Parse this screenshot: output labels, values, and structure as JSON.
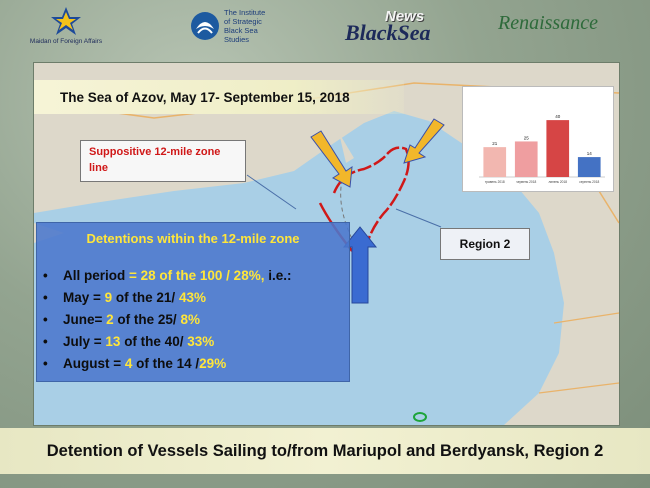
{
  "logos": {
    "mfa_label": "Maidan of Foreign Affairs",
    "iss_label_lines": [
      "The Institute",
      "of Strategic",
      "Black Sea",
      "Studies"
    ],
    "news_word": "News",
    "blacksea_word": "BlackSea",
    "renaissance_word": "Renaissance"
  },
  "slide_title": "The Sea of Azov, May 17- September 15, 2018",
  "zone_note": "Suppositive  12-mile zone line",
  "region_label": "Region 2",
  "detentions": {
    "title": "Detentions within the 12-mile zone",
    "items": [
      {
        "prefix": "All period ",
        "hl1": "= 28 of the 100 / 28%,",
        "suffix": " i.e.:"
      },
      {
        "prefix": "May = ",
        "hl1": "9",
        "mid": " of the 21/ ",
        "hl2": "43%"
      },
      {
        "prefix": "June= ",
        "hl1": "2",
        "mid": " of the  25/ ",
        "hl2": "8%"
      },
      {
        "prefix": "July = ",
        "hl1": "13",
        "mid": " of the 40/ ",
        "hl2": "33%"
      },
      {
        "prefix": "August = ",
        "hl1": "4",
        "mid": " of the 14 /",
        "hl2": "29%"
      }
    ]
  },
  "footer_title": "Detention of Vessels Sailing to/from Mariupol and Berdyansk, Region 2",
  "chart_data": {
    "type": "bar",
    "categories": [
      "травень 2018",
      "червень 2018",
      "липень 2018",
      "серпень 2018"
    ],
    "values": [
      21,
      25,
      40,
      14
    ],
    "colors": [
      "#f2b7b0",
      "#ef9ea0",
      "#d64545",
      "#4472c4"
    ],
    "ylim": [
      0,
      45
    ]
  },
  "colors": {
    "panel_blue": "#4b78cd",
    "highlight_yellow": "#ffe63a",
    "zone_red": "#d01818"
  }
}
